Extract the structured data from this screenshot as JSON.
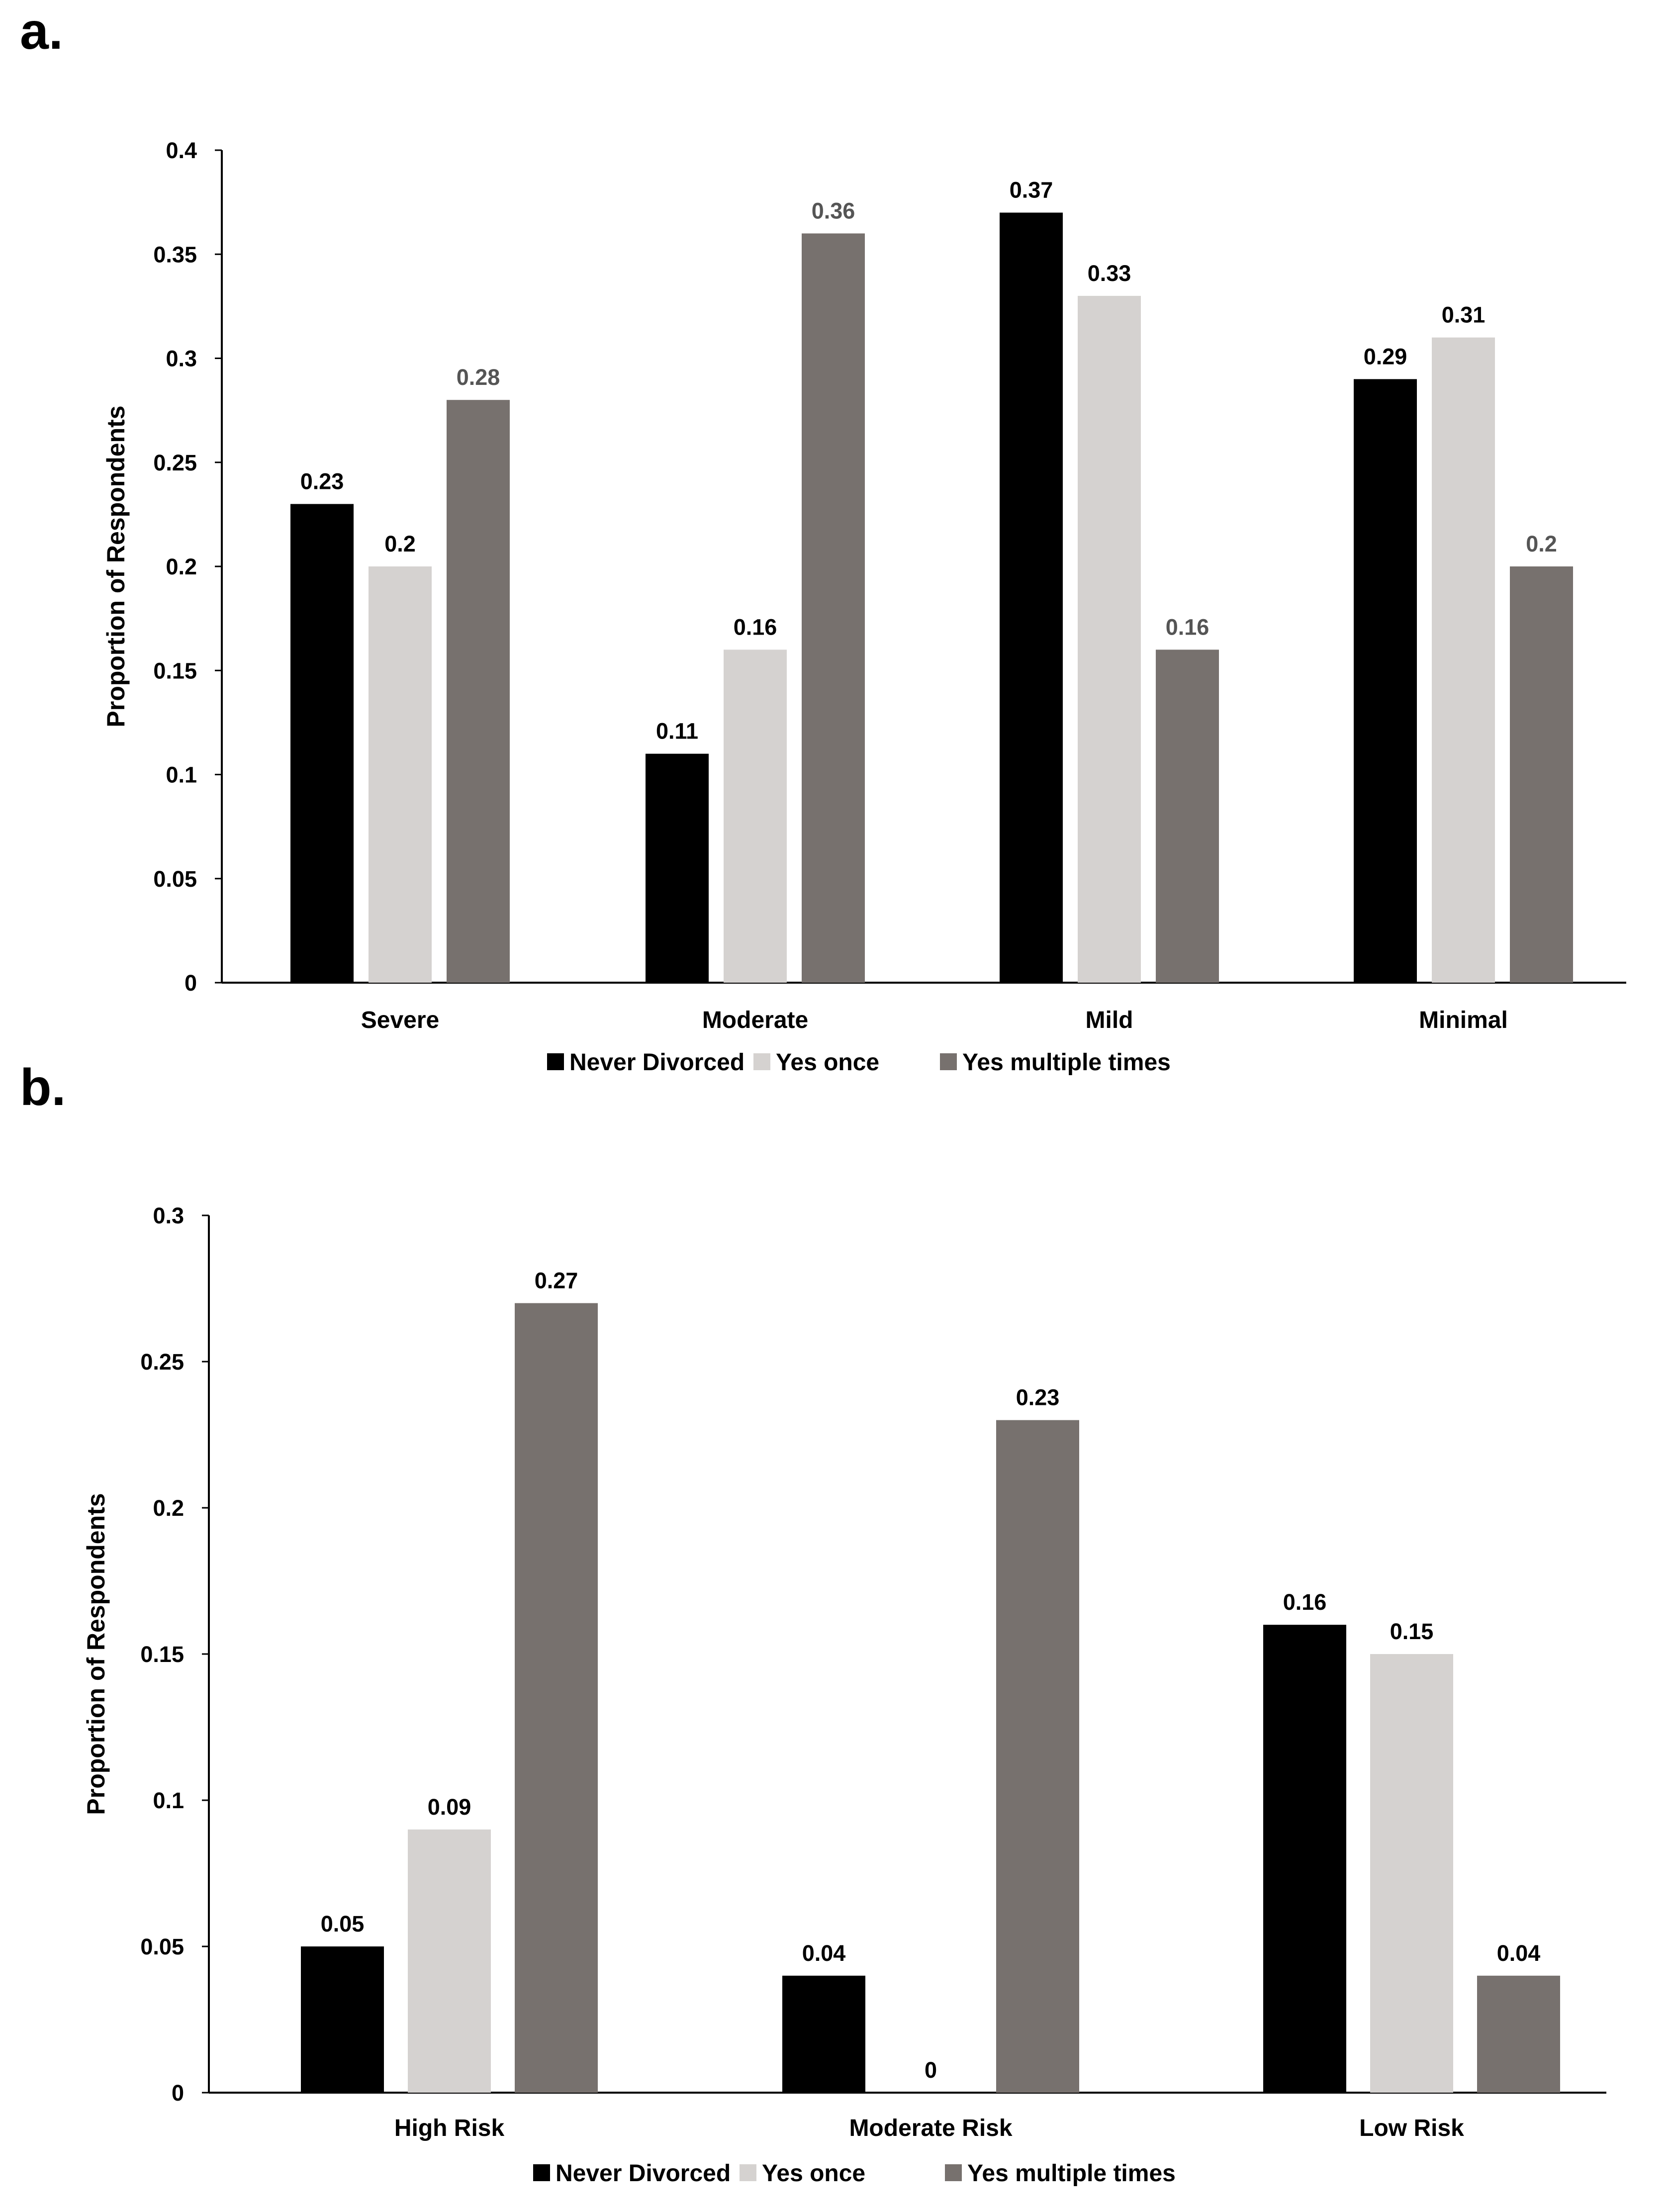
{
  "panels": [
    {
      "letter": "a."
    },
    {
      "letter": "b."
    }
  ],
  "colors": {
    "never": "#000000",
    "once": "#d5d2d0",
    "multiple": "#77716e",
    "axis": "#000000",
    "label_dark": "#000000",
    "label_grey": "#555555"
  },
  "chart_data": [
    {
      "type": "bar",
      "title": "",
      "xlabel": "",
      "ylabel": "Proportion of Respondents",
      "ylim": [
        0,
        0.4
      ],
      "yticks": [
        0,
        0.05,
        0.1,
        0.15,
        0.2,
        0.25,
        0.3,
        0.35,
        0.4
      ],
      "ytick_labels": [
        "0",
        "0.05",
        "0.1",
        "0.15",
        "0.2",
        "0.25",
        "0.3",
        "0.35",
        "0.4"
      ],
      "grid": false,
      "legend_position": "bottom-center",
      "categories": [
        "Severe",
        "Moderate",
        "Mild",
        "Minimal"
      ],
      "series": [
        {
          "name": "Never Divorced",
          "values": [
            0.23,
            0.11,
            0.37,
            0.29
          ],
          "labels": [
            "0.23",
            "0.11",
            "0.37",
            "0.29"
          ]
        },
        {
          "name": "Yes once",
          "values": [
            0.2,
            0.16,
            0.33,
            0.31
          ],
          "labels": [
            "0.2",
            "0.16",
            "0.33",
            "0.31"
          ]
        },
        {
          "name": "Yes multiple times",
          "values": [
            0.28,
            0.36,
            0.16,
            0.2
          ],
          "labels": [
            "0.28",
            "0.36",
            "0.16",
            "0.2"
          ]
        }
      ]
    },
    {
      "type": "bar",
      "title": "",
      "xlabel": "",
      "ylabel": "Proportion of Respondents",
      "ylim": [
        0,
        0.3
      ],
      "yticks": [
        0,
        0.05,
        0.1,
        0.15,
        0.2,
        0.25,
        0.3
      ],
      "ytick_labels": [
        "0",
        "0.05",
        "0.1",
        "0.15",
        "0.2",
        "0.25",
        "0.3"
      ],
      "grid": false,
      "legend_position": "bottom-center",
      "categories": [
        "High Risk",
        "Moderate Risk",
        "Low Risk"
      ],
      "series": [
        {
          "name": "Never Divorced",
          "values": [
            0.05,
            0.04,
            0.16
          ],
          "labels": [
            "0.05",
            "0.04",
            "0.16"
          ]
        },
        {
          "name": "Yes once",
          "values": [
            0.09,
            0,
            0.15
          ],
          "labels": [
            "0.09",
            "0",
            "0.15"
          ]
        },
        {
          "name": "Yes multiple times",
          "values": [
            0.27,
            0.23,
            0.04
          ],
          "labels": [
            "0.27",
            "0.23",
            "0.04"
          ]
        }
      ]
    }
  ]
}
